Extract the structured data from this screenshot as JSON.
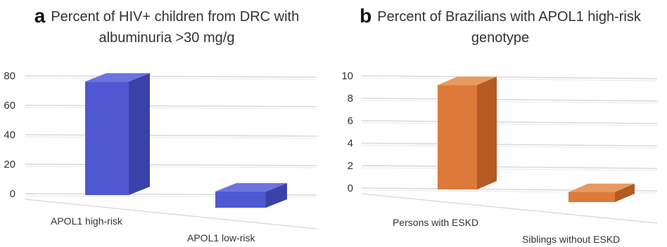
{
  "chart_data": [
    {
      "panel_letter": "a",
      "type": "bar",
      "title_lines": [
        "Percent of HIV+ children from DRC  with",
        "albuminuria >30 mg/g"
      ],
      "categories": [
        "APOL1 high-risk",
        "APOL1 low-risk"
      ],
      "values": [
        77,
        11
      ],
      "ylim": [
        0,
        80
      ],
      "yticks": [
        "0",
        "20",
        "40",
        "60",
        "80"
      ],
      "bar_colors": {
        "front": "#4F58D1",
        "side": "#3A42A8",
        "top": "#6C74E0"
      },
      "grid": true,
      "style": "3d"
    },
    {
      "panel_letter": "b",
      "type": "bar",
      "title_lines": [
        "Percent of Brazilians with APOL1 high-risk",
        "genotype"
      ],
      "categories": [
        "Persons with ESKD",
        "Siblings without ESKD"
      ],
      "values": [
        9.3,
        0.9
      ],
      "ylim": [
        0,
        10
      ],
      "yticks": [
        "0",
        "2",
        "4",
        "6",
        "8",
        "10"
      ],
      "bar_colors": {
        "front": "#DD7A3A",
        "side": "#B45A22",
        "top": "#E99A5E"
      },
      "grid": true,
      "style": "3d"
    }
  ]
}
